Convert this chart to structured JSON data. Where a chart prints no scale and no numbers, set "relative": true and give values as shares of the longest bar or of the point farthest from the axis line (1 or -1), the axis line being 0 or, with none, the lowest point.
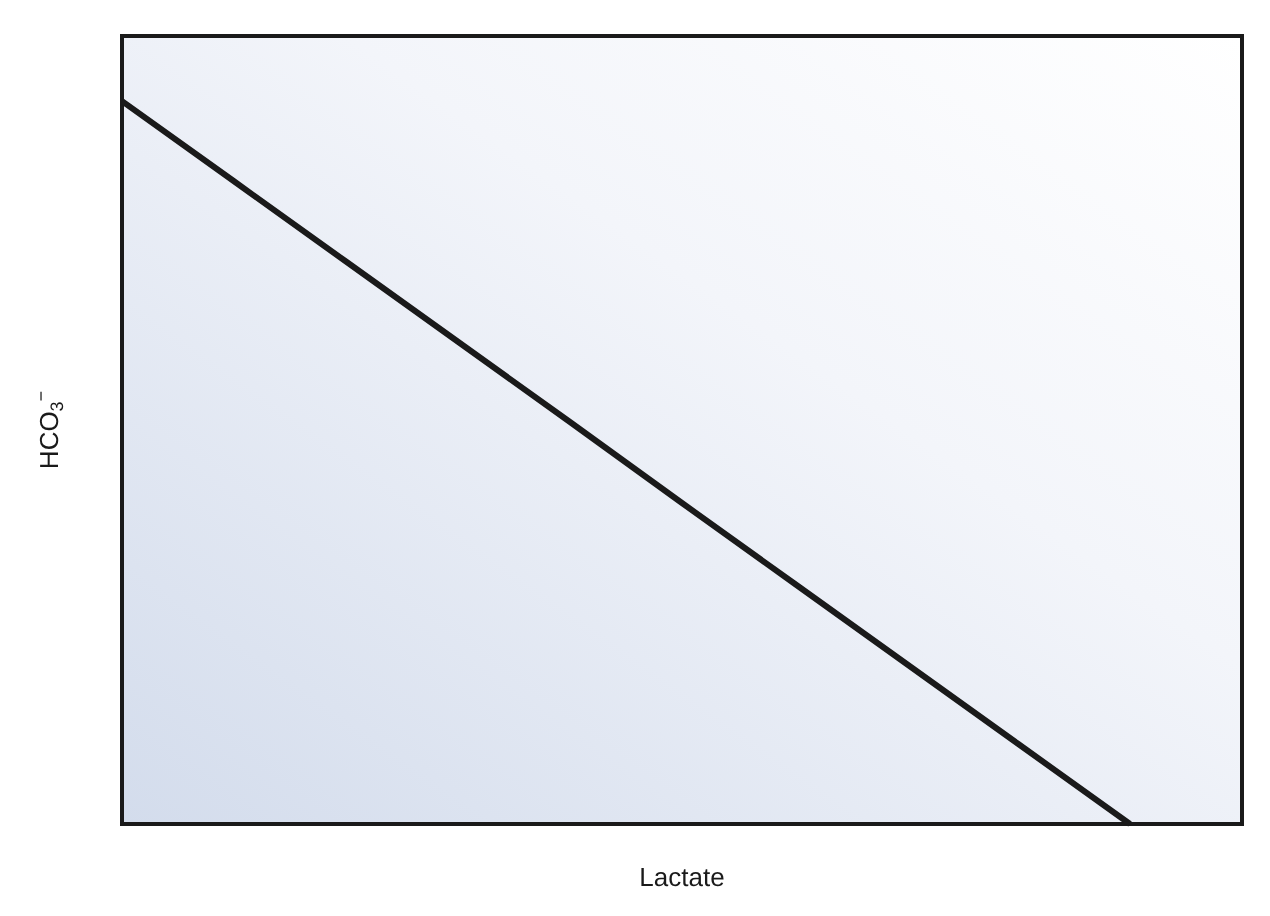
{
  "chart_data": {
    "type": "line",
    "relative": true,
    "xlabel": "Lactate",
    "ylabel": "HCO$_{3}$$^{−}$",
    "categories": [
      null,
      null,
      null,
      null,
      null,
      null,
      null,
      null,
      null,
      null,
      null
    ],
    "series": [
      {
        "color": "#1a1a1a",
        "values": [
          1,
          0.889,
          0.778,
          0.667,
          0.556,
          0.444,
          0.333,
          0.222,
          0.111,
          0,
          null
        ]
      }
    ],
    "grid": false
  }
}
